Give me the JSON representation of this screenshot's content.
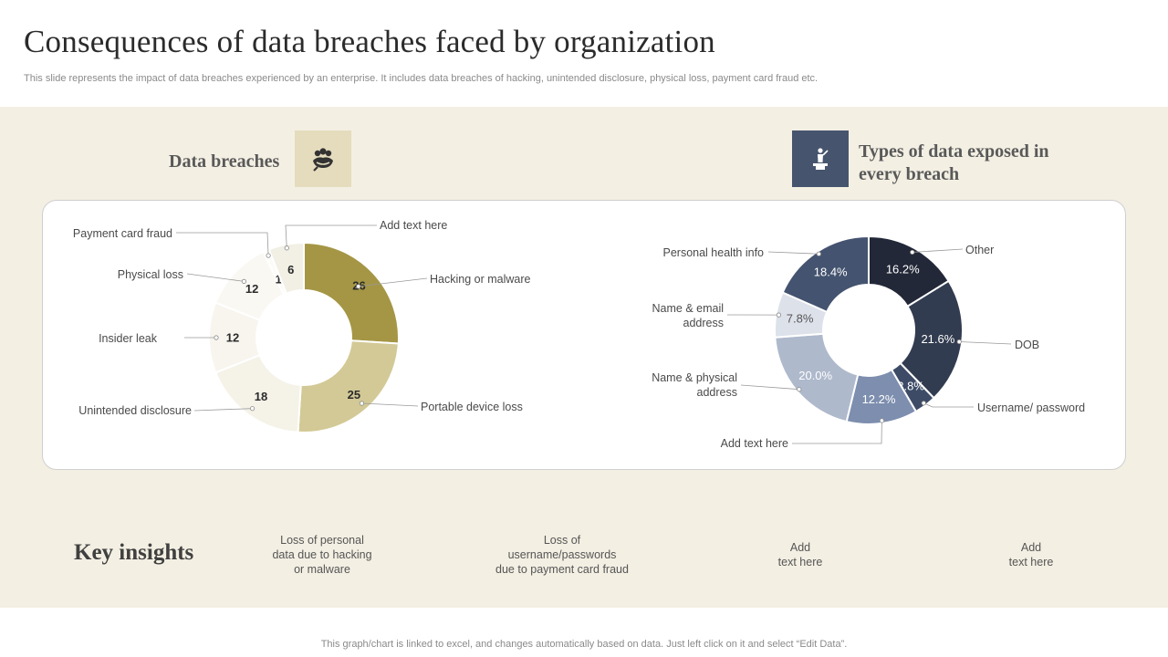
{
  "page": {
    "title": "Consequences of data breaches faced by organization",
    "subtitle": "This slide represents the impact of data breaches experienced by an enterprise. It includes data breaches of hacking, unintended disclosure, physical loss, payment card fraud etc.",
    "footer": "This graph/chart is linked to excel,  and changes automatically based on data. Just left click on it and select “Edit Data”."
  },
  "sections": {
    "left_heading": "Data breaches",
    "right_heading": "Types of data exposed in every breach",
    "left_icon": "group-people-icon",
    "right_icon": "presenter-podium-icon"
  },
  "key_insights": {
    "heading": "Key insights",
    "items": [
      "Loss of personal\ndata due to hacking\nor malware",
      "Loss of\nusername/passwords\ndue to payment card fraud",
      "Add\ntext here",
      "Add\ntext here"
    ]
  },
  "chart_data": [
    {
      "type": "pie",
      "title": "Data breaches",
      "categories": [
        "Hacking or malware",
        "Portable device loss",
        "Unintended disclosure",
        "Insider leak",
        "Physical loss",
        "Payment card fraud",
        "Add text here"
      ],
      "values": [
        26,
        25,
        18,
        12,
        12,
        1,
        6
      ],
      "value_labels": [
        "26",
        "25",
        "18",
        "12",
        "12",
        "1",
        "6"
      ],
      "colors": [
        "#a59645",
        "#d3c996",
        "#f5f2e8",
        "#f7f5ee",
        "#faf8f3",
        "#fcfbf8",
        "#f2efe4"
      ],
      "label_colors": [
        "#2b2b2b",
        "#2b2b2b",
        "#2b2b2b",
        "#2b2b2b",
        "#2b2b2b",
        "#2b2b2b",
        "#2b2b2b"
      ]
    },
    {
      "type": "pie",
      "title": "Types of data exposed in every breach",
      "categories": [
        "Other",
        "DOB",
        "Username/ password",
        "Add text here",
        "Name & physical address",
        "Name & email address",
        "Personal health info"
      ],
      "values": [
        16.2,
        21.6,
        3.8,
        12.2,
        20.0,
        7.8,
        18.4
      ],
      "value_labels": [
        "16.2%",
        "21.6%",
        "3.8%",
        "12.2%",
        "20.0%",
        "7.8%",
        "18.4%"
      ],
      "colors": [
        "#222838",
        "#323c50",
        "#3d4b66",
        "#7d8eae",
        "#aeb9cc",
        "#dde1ea",
        "#44536f"
      ],
      "label_colors": [
        "#ffffff",
        "#ffffff",
        "#ffffff",
        "#ffffff",
        "#ffffff",
        "#555555",
        "#ffffff"
      ]
    }
  ]
}
